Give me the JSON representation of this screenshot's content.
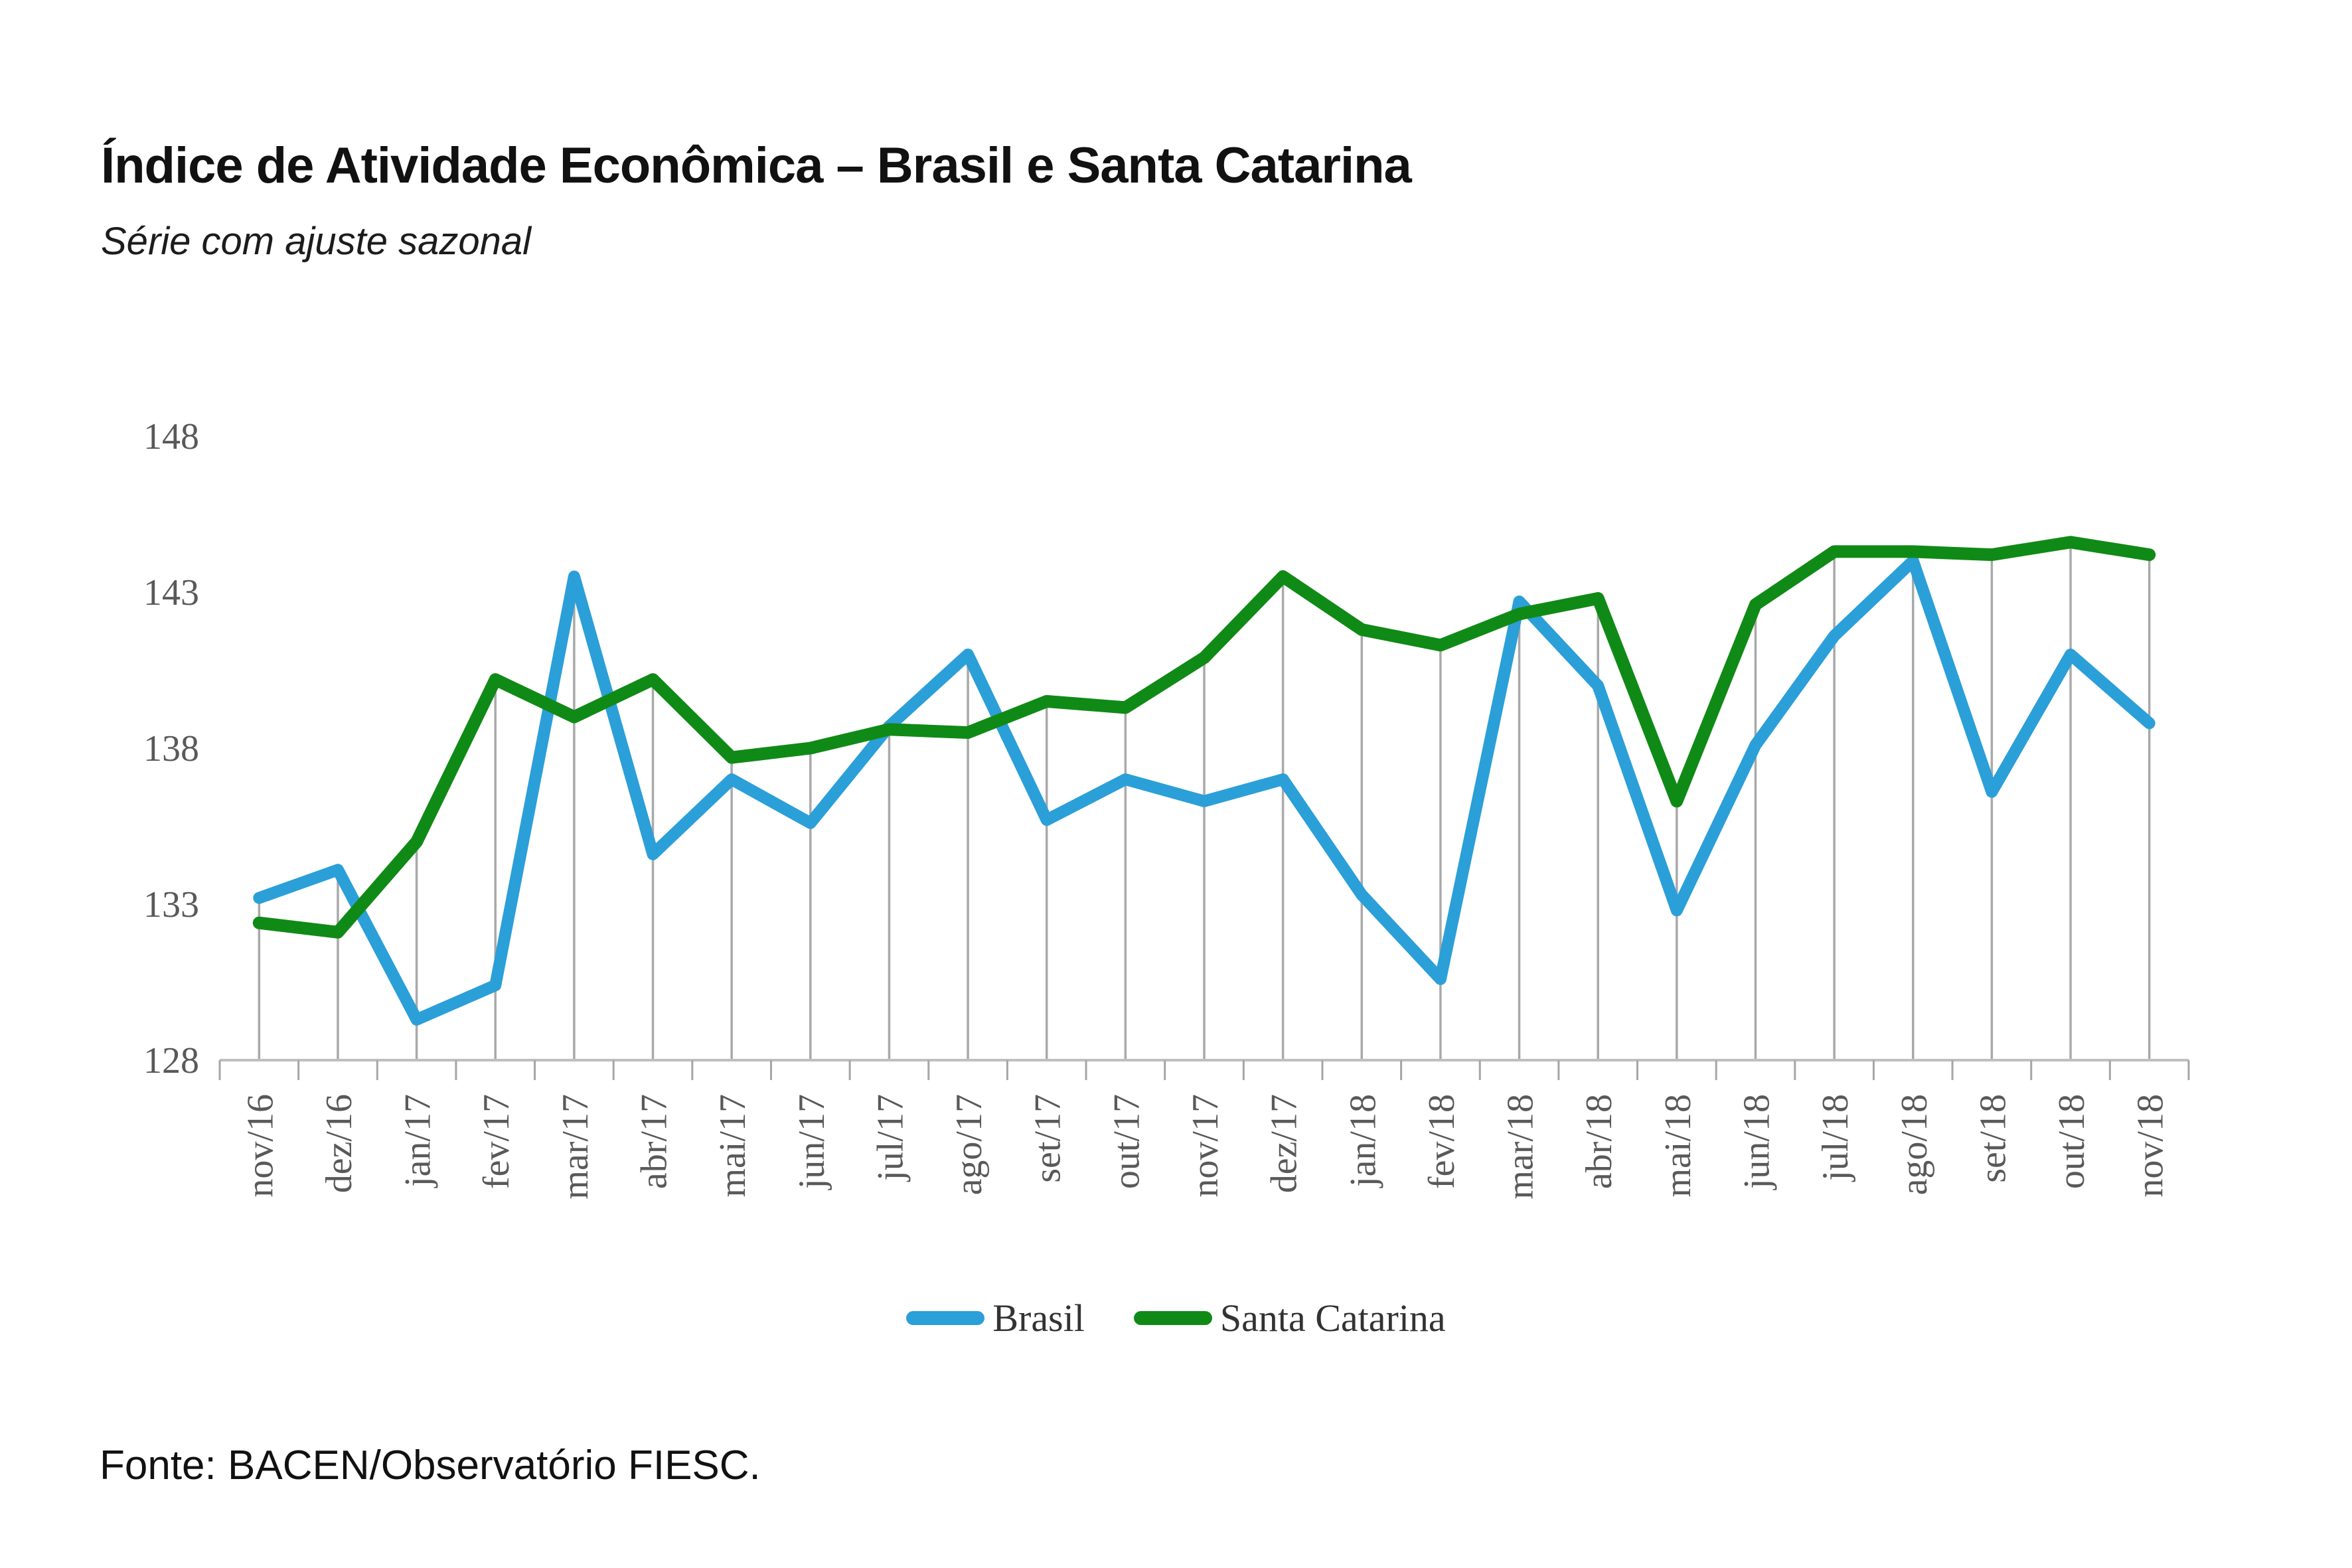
{
  "header": {
    "title": "Índice de Atividade Econômica – Brasil e Santa Catarina",
    "subtitle": "Série com ajuste sazonal"
  },
  "footer": {
    "source": "Fonte: BACEN/Observatório FIESC."
  },
  "colors": {
    "brasil": "#2B9FD8",
    "santa_catarina": "#108A16",
    "drop_line": "#A9A9A9",
    "axis_line": "#BFBFBF",
    "tick_mark": "#A6A6A6",
    "axis_label": "#595959",
    "legend_text": "#333333"
  },
  "chart_data": {
    "type": "line",
    "title": "Índice de Atividade Econômica – Brasil e Santa Catarina",
    "subtitle": "Série com ajuste sazonal",
    "categories": [
      "nov/16",
      "dez/16",
      "jan/17",
      "fev/17",
      "mar/17",
      "abr/17",
      "mai/17",
      "jun/17",
      "jul/17",
      "ago/17",
      "set/17",
      "out/17",
      "nov/17",
      "dez/17",
      "jan/18",
      "fev/18",
      "mar/18",
      "abr/18",
      "mai/18",
      "jun/18",
      "jul/18",
      "ago/18",
      "set/18",
      "out/18",
      "nov/18"
    ],
    "series": [
      {
        "name": "Brasil",
        "color_key": "brasil",
        "values": [
          133.2,
          134.1,
          129.3,
          130.4,
          143.5,
          134.6,
          137.0,
          135.6,
          138.7,
          141.0,
          135.7,
          137.0,
          136.3,
          137.0,
          133.3,
          130.6,
          142.7,
          140.0,
          132.8,
          138.1,
          141.6,
          144.0,
          136.6,
          141.0,
          138.8
        ]
      },
      {
        "name": "Santa Catarina",
        "color_key": "santa_catarina",
        "values": [
          132.4,
          132.1,
          135.0,
          140.2,
          139.0,
          140.2,
          137.7,
          138.0,
          138.6,
          138.5,
          139.5,
          139.3,
          140.9,
          143.5,
          141.8,
          141.3,
          142.3,
          142.8,
          136.3,
          142.6,
          144.3,
          144.3,
          144.2,
          144.6,
          144.2
        ]
      }
    ],
    "ylim": [
      128,
      148
    ],
    "yticks": [
      128,
      133,
      138,
      143,
      148
    ],
    "grid": "vertical drop line at each category, no horizontal gridlines",
    "legend_position": "bottom-center",
    "x_label_rotation": -90
  }
}
